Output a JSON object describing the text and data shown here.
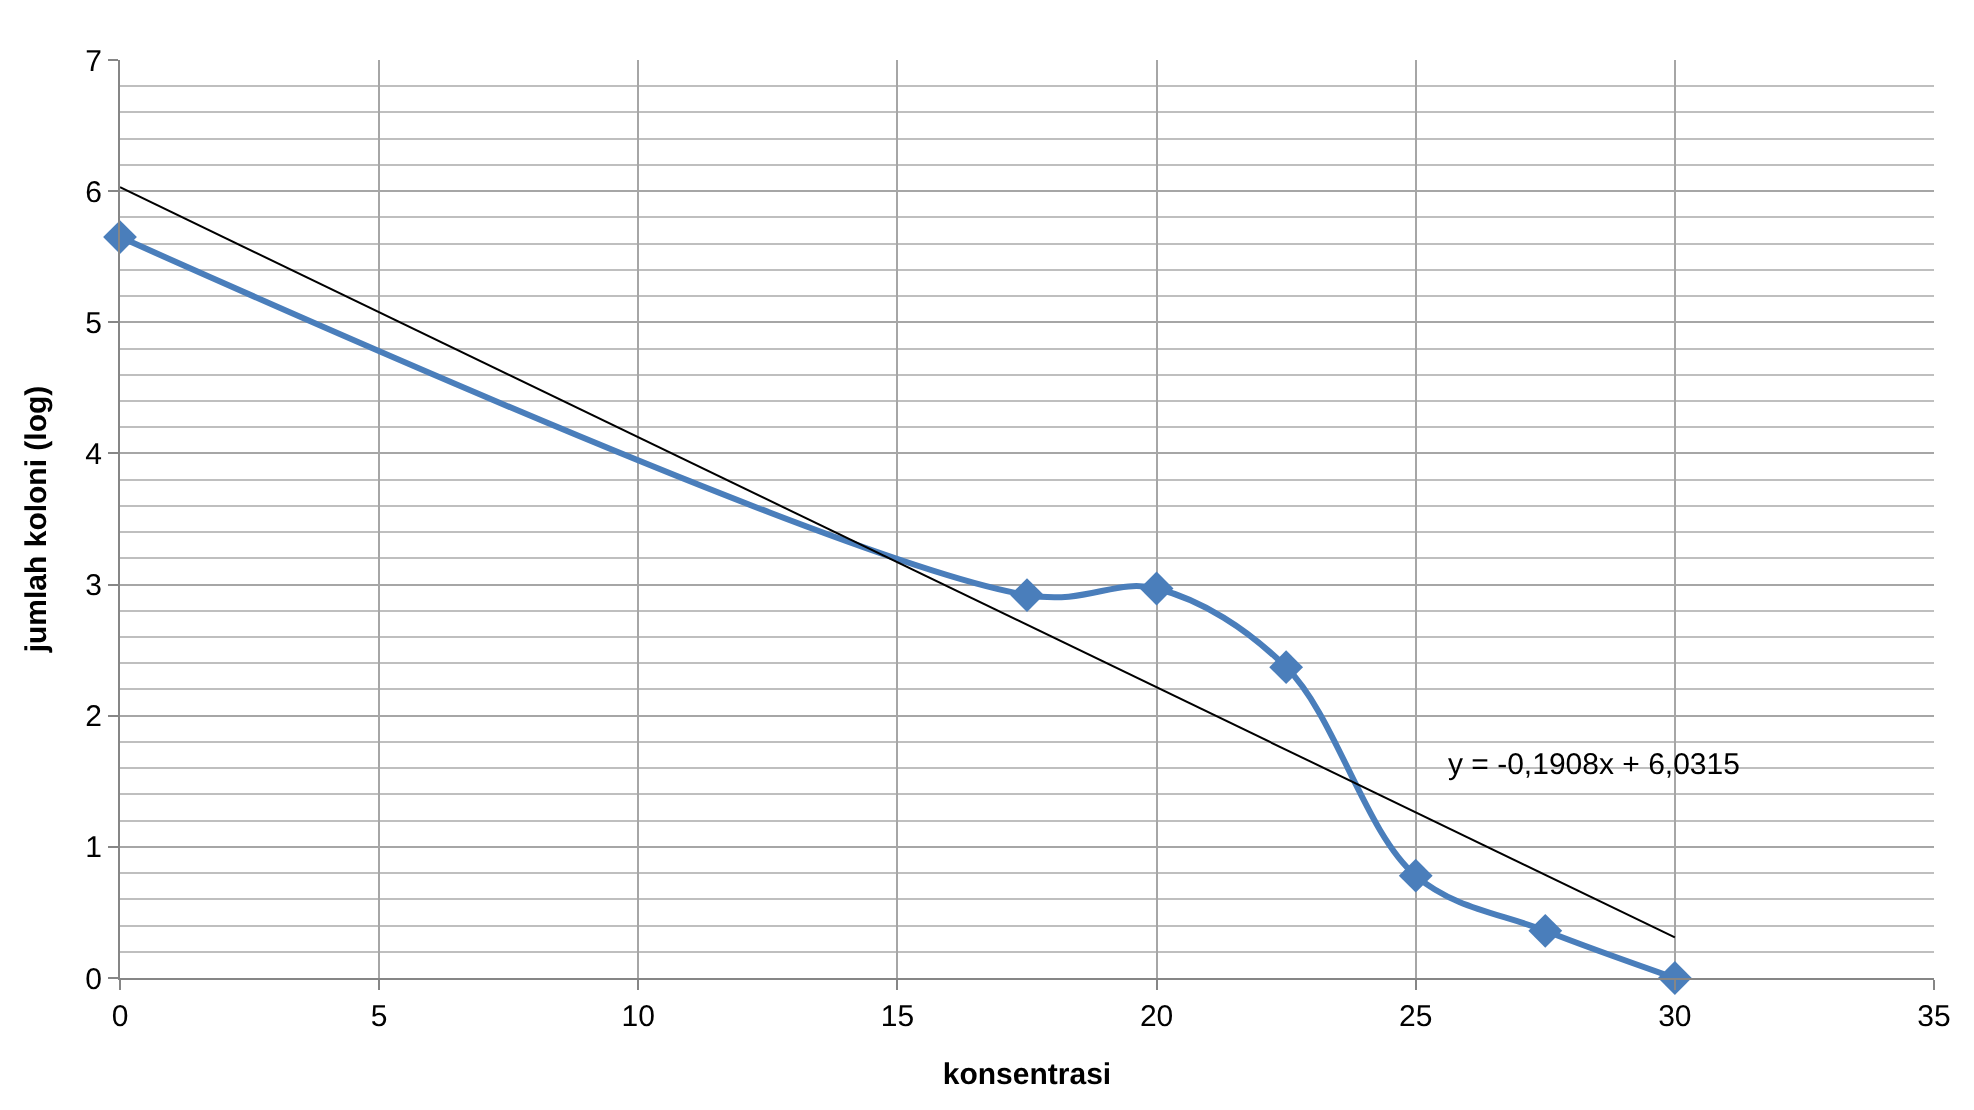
{
  "chart_data": {
    "type": "line",
    "xlabel": "konsentrasi",
    "ylabel": "jumlah koloni (log)",
    "x": [
      0,
      17.5,
      20,
      22.5,
      25,
      27.5,
      30
    ],
    "series": [
      {
        "color": "#4a7ebb",
        "values": [
          5.65,
          2.92,
          2.97,
          2.37,
          0.78,
          0.36,
          0.0
        ],
        "marker": "diamond"
      },
      {
        "color": "#000000",
        "x": [
          0,
          30
        ],
        "values": [
          6.03,
          0.31
        ],
        "marker": "none"
      }
    ],
    "annotations": [
      "y = -0,1908x + 6,0315"
    ],
    "xlim": [
      0,
      35
    ],
    "xticks": [
      0,
      5,
      10,
      15,
      20,
      25,
      30,
      35
    ],
    "ylim": [
      0,
      7
    ],
    "yticks": [
      0,
      1,
      2,
      3,
      4,
      5,
      6,
      7
    ],
    "grid": true
  }
}
